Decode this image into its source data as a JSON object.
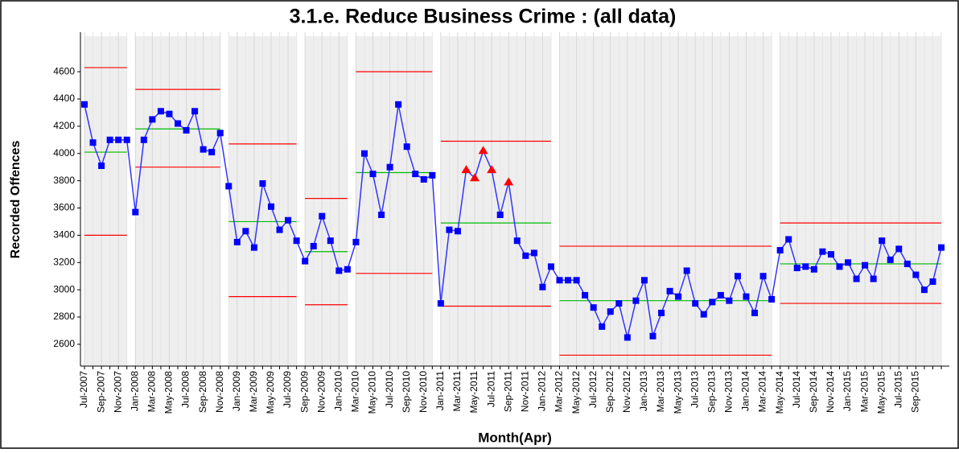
{
  "chart_data": {
    "type": "control",
    "title": "3.1.e. Reduce Business Crime : (all data)",
    "x_label": "Month(Apr)",
    "y_label": "Recorded Offences",
    "categories": [
      "Jul-2007",
      null,
      "Sep-2007",
      null,
      "Nov-2007",
      null,
      "Jan-2008",
      null,
      "Mar-2008",
      null,
      "May-2008",
      null,
      "Jul-2008",
      null,
      "Sep-2008",
      null,
      "Nov-2008",
      null,
      "Jan-2009",
      null,
      "Mar-2009",
      null,
      "May-2009",
      null,
      "Jul-2009",
      null,
      "Sep-2009",
      null,
      "Nov-2009",
      null,
      "Jan-2010",
      null,
      "Mar-2010",
      null,
      "May-2010",
      null,
      "Jul-2010",
      null,
      "Sep-2010",
      null,
      "Nov-2010",
      null,
      "Jan-2011",
      null,
      "Mar-2011",
      null,
      "May-2011",
      null,
      "Jul-2011",
      null,
      "Sep-2011",
      null,
      "Nov-2011",
      null,
      "Jan-2012",
      null,
      "Mar-2012",
      null,
      "May-2012",
      null,
      "Jul-2012",
      null,
      "Sep-2012",
      null,
      "Nov-2012",
      null,
      "Jan-2013",
      null,
      "Mar-2013",
      null,
      "May-2013",
      null,
      "Jul-2013",
      null,
      "Sep-2013",
      null,
      "Nov-2013",
      null,
      "Jan-2014",
      null,
      "Mar-2014",
      null,
      "May-2014",
      null,
      "Jul-2014",
      null,
      "Sep-2014",
      null,
      "Nov-2014",
      null,
      "Jan-2015",
      null,
      "Mar-2015",
      null,
      "May-2015",
      null,
      "Jul-2015",
      null,
      "Sep-2015",
      null,
      null,
      null
    ],
    "values": [
      4360,
      4080,
      3910,
      4100,
      4100,
      4100,
      3570,
      4100,
      4250,
      4310,
      4290,
      4220,
      4170,
      4310,
      4030,
      4010,
      4150,
      3760,
      3350,
      3430,
      3310,
      3780,
      3610,
      3440,
      3510,
      3360,
      3210,
      3320,
      3540,
      3360,
      3140,
      3150,
      3350,
      4000,
      3850,
      3550,
      3900,
      4360,
      4050,
      3850,
      3810,
      3840,
      2900,
      3440,
      3430,
      3880,
      3820,
      4020,
      3880,
      3550,
      3790,
      3360,
      3250,
      3270,
      3020,
      3170,
      3070,
      3070,
      3070,
      2960,
      2870,
      2730,
      2840,
      2900,
      2650,
      2920,
      3070,
      2660,
      2830,
      2990,
      2950,
      3140,
      2900,
      2820,
      2910,
      2960,
      2920,
      3100,
      2950,
      2830,
      3100,
      2930,
      3290,
      3370,
      3160,
      3170,
      3150,
      3280,
      3260,
      3170,
      3200,
      3080,
      3180,
      3080,
      3360,
      3220,
      3300,
      3190,
      3110,
      3000,
      3060,
      3310
    ],
    "color": "#0000ff",
    "flag_color": "#ff0000",
    "flagged": [
      45,
      46,
      47,
      48,
      50
    ],
    "phases": [
      {
        "start": 0,
        "end": 5,
        "mean": 4010,
        "ucl": 4630,
        "lcl": 3400
      },
      {
        "start": 6,
        "end": 16,
        "mean": 4180,
        "ucl": 4470,
        "lcl": 3900
      },
      {
        "start": 17,
        "end": 25,
        "mean": 3500,
        "ucl": 4070,
        "lcl": 2950
      },
      {
        "start": 26,
        "end": 31,
        "mean": 3280,
        "ucl": 3670,
        "lcl": 2890
      },
      {
        "start": 32,
        "end": 41,
        "mean": 3860,
        "ucl": 4600,
        "lcl": 3120
      },
      {
        "start": 42,
        "end": 55,
        "mean": 3490,
        "ucl": 4090,
        "lcl": 2880
      },
      {
        "start": 56,
        "end": 81,
        "mean": 2920,
        "ucl": 3320,
        "lcl": 2520
      },
      {
        "start": 82,
        "end": 101,
        "mean": 3190,
        "ucl": 3490,
        "lcl": 2900
      }
    ],
    "mean_color": "#00bb00",
    "limit_color": "#ff0000",
    "ylim": [
      2440,
      4890
    ],
    "yticks": [
      2600,
      2800,
      3000,
      3200,
      3400,
      3600,
      3800,
      4000,
      4200,
      4400,
      4600
    ]
  }
}
